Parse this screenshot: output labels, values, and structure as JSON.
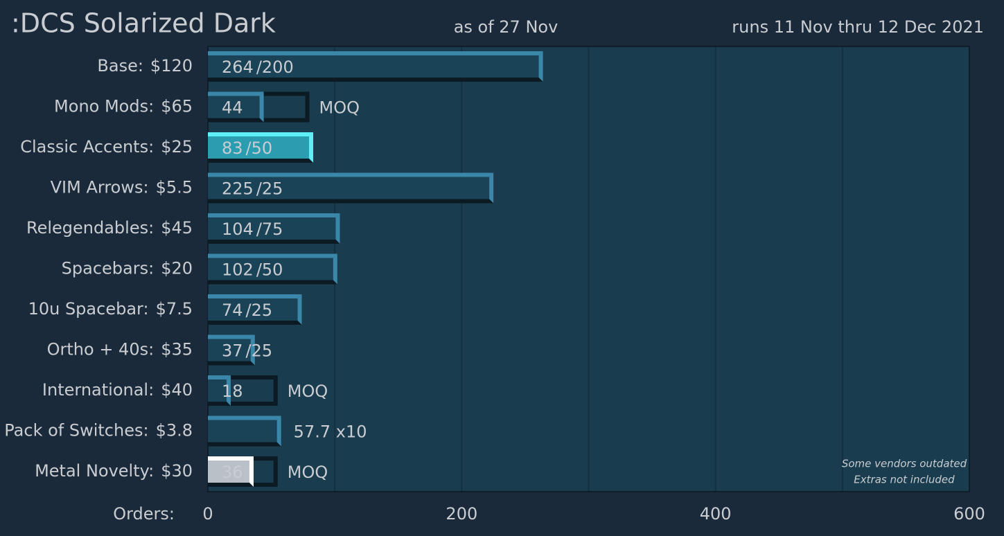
{
  "chart_data": {
    "type": "bar",
    "orientation": "horizontal",
    "title": ":DCS Solarized Dark",
    "subtitle": "as of 27 Nov",
    "run_dates": "runs 11 Nov thru 12 Dec 2021",
    "x_label": "Orders:",
    "notes": [
      "Some vendors outdated",
      "Extras not included"
    ],
    "categories": [
      "Base:",
      "Mono Mods:",
      "Classic Accents:",
      "VIM Arrows:",
      "Relegendables:",
      "Spacebars:",
      "10u Spacebar:",
      "Ortho + 40s:",
      "International:",
      "Pack of Switches:",
      "Metal Novelty:"
    ],
    "prices": [
      "$120",
      "$65",
      "$25",
      "$5.5",
      "$45",
      "$20",
      "$7.5",
      "$35",
      "$40",
      "$3.8",
      "$30"
    ],
    "label_colors": [
      "#2b9fd9",
      "#c9cdd1",
      "#687f8f",
      "#7fa23a",
      "#e8531f",
      "#c9a61c",
      "#c92a24",
      "#9887c1",
      "#d8628b",
      "#c9cdd1",
      "#687f8f"
    ],
    "values": [
      264,
      44,
      83,
      225,
      104,
      102,
      74,
      37,
      18,
      57.7,
      36
    ],
    "value_labels": [
      "264",
      "44",
      "83",
      "225",
      "104",
      "102",
      "74",
      "37",
      "18",
      "57.7 x10",
      "36"
    ],
    "target_labels": [
      "/200",
      null,
      "/50",
      "/25",
      "/75",
      "/50",
      "/25",
      "/25",
      null,
      null,
      null
    ],
    "moq": [
      null,
      80,
      null,
      null,
      null,
      null,
      null,
      null,
      55,
      null,
      55
    ],
    "moq_label": "MOQ",
    "bar_colors": [
      "#1b4357",
      "#1b4357",
      "#2a9db1",
      "#1b4357",
      "#1b4357",
      "#1b4357",
      "#1b4357",
      "#1b4357",
      "#1b4357",
      "#1b4357",
      "#b9c0c7"
    ],
    "edge_colors": [
      "#3a87aa",
      "#3a87aa",
      "#5ef0f6",
      "#3a87aa",
      "#3a87aa",
      "#3a87aa",
      "#3a87aa",
      "#3a87aa",
      "#3a87aa",
      "#3a87aa",
      "#ffffff"
    ],
    "xlim": [
      0,
      600
    ],
    "xticks": [
      0,
      200,
      400,
      600
    ],
    "gridlines": [
      100,
      200,
      300,
      400,
      500
    ],
    "grid": true
  }
}
